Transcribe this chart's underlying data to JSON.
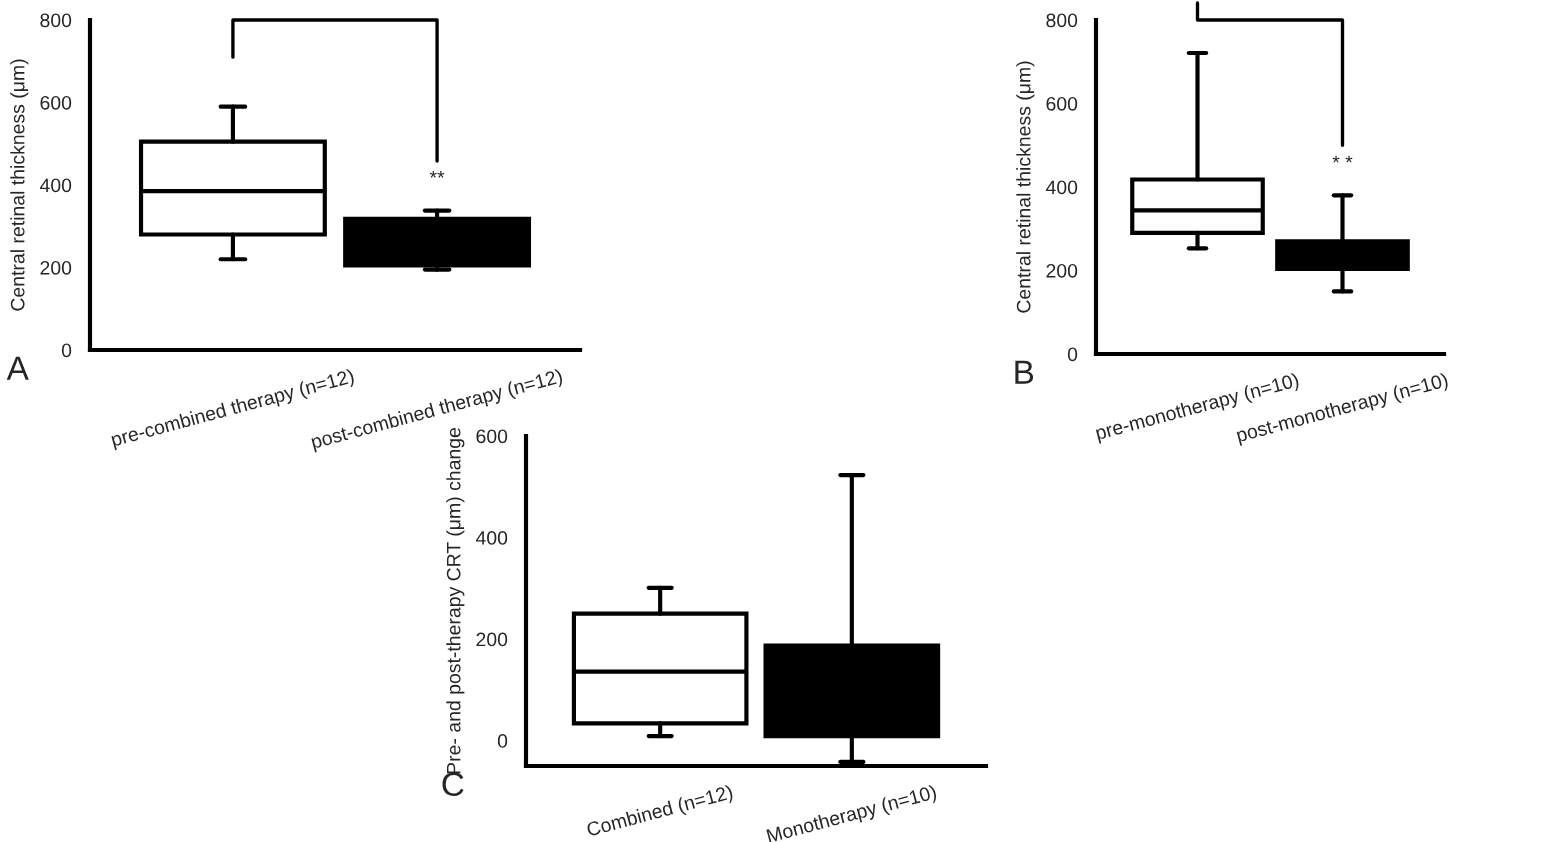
{
  "chart_data": [
    {
      "type": "box",
      "categories": [
        "pre-combined therapy (n=12)",
        "post-combined therapy (n=12)"
      ],
      "ylabel": "Central retinal thickness (μm)",
      "ylim": [
        0,
        800
      ],
      "yticks": [
        0,
        200,
        400,
        600,
        800
      ],
      "colors": [
        "#ffffff",
        "#000000"
      ],
      "boxes": [
        {
          "low": 220,
          "q1": 280,
          "median": 385,
          "q3": 505,
          "high": 590
        },
        {
          "low": 195,
          "q1": 205,
          "median": 250,
          "q3": 318,
          "high": 338
        }
      ],
      "annotations": [
        "A",
        "**"
      ]
    },
    {
      "type": "box",
      "categories": [
        "pre-monotherapy (n=10)",
        "post-monotherapy (n=10)"
      ],
      "ylabel": "Central retinal thickness (μm)",
      "ylim": [
        0,
        800
      ],
      "yticks": [
        0,
        200,
        400,
        600,
        800
      ],
      "colors": [
        "#ffffff",
        "#000000"
      ],
      "boxes": [
        {
          "low": 253,
          "q1": 290,
          "median": 344,
          "q3": 418,
          "high": 721
        },
        {
          "low": 150,
          "q1": 204,
          "median": 240,
          "q3": 270,
          "high": 380
        }
      ],
      "annotations": [
        "B",
        "* *"
      ]
    },
    {
      "type": "box",
      "categories": [
        "Combined (n=12)",
        "Monotherapy (n=10)"
      ],
      "ylabel": "Pre- and post-therapy CRT (μm) change",
      "ylim": [
        -50,
        600
      ],
      "yticks": [
        0,
        200,
        400,
        600
      ],
      "colors": [
        "#ffffff",
        "#000000"
      ],
      "boxes": [
        {
          "low": 9,
          "q1": 34,
          "median": 136,
          "q3": 250,
          "high": 301
        },
        {
          "low": -42,
          "q1": 9,
          "median": 100,
          "q3": 187,
          "high": 523
        }
      ],
      "annotations": [
        "C"
      ]
    }
  ]
}
